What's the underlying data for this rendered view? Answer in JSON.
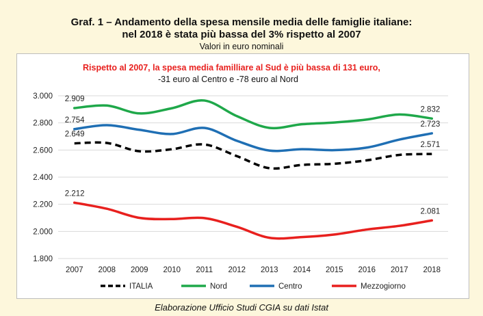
{
  "header": {
    "title_line1": "Graf. 1 – Andamento della spesa mensile media delle famiglie italiane:",
    "title_line2": "nel 2018 è stata più bassa del 3% rispetto al 2007",
    "subtitle": "Valori in euro nominali"
  },
  "source": "Elaborazione Ufficio Studi CGIA su dati Istat",
  "chart_data": {
    "type": "line",
    "annotation_line1": "Rispetto al 2007, la spesa media familliare al Sud è più bassa di 131 euro,",
    "annotation_line2": "-31 euro al Centro e -78 euro al Nord",
    "x": [
      "2007",
      "2008",
      "2009",
      "2010",
      "2011",
      "2012",
      "2013",
      "2014",
      "2015",
      "2016",
      "2017",
      "2018"
    ],
    "ylim": [
      1800,
      3000
    ],
    "yticks": [
      "1.800",
      "2.000",
      "2.200",
      "2.400",
      "2.600",
      "2.800",
      "3.000"
    ],
    "ytick_values": [
      1800,
      2000,
      2200,
      2400,
      2600,
      2800,
      3000
    ],
    "grid": true,
    "legend_position": "bottom",
    "series": [
      {
        "name": "ITALIA",
        "color": "#000000",
        "dashed": true,
        "values": [
          2649,
          2652,
          2591,
          2606,
          2641,
          2555,
          2466,
          2490,
          2499,
          2524,
          2564,
          2571
        ],
        "start_label": "2.649",
        "end_label": "2.571"
      },
      {
        "name": "Nord",
        "color": "#1fa84a",
        "dashed": false,
        "values": [
          2909,
          2928,
          2870,
          2908,
          2965,
          2850,
          2763,
          2790,
          2803,
          2825,
          2862,
          2832
        ],
        "start_label": "2.909",
        "end_label": "2.832"
      },
      {
        "name": "Centro",
        "color": "#1f6fb4",
        "dashed": false,
        "values": [
          2754,
          2783,
          2749,
          2718,
          2763,
          2668,
          2596,
          2606,
          2599,
          2618,
          2677,
          2723
        ],
        "start_label": "2.754",
        "end_label": "2.723"
      },
      {
        "name": "Mezzogiorno",
        "color": "#e8201e",
        "dashed": false,
        "values": [
          2212,
          2167,
          2100,
          2091,
          2098,
          2034,
          1953,
          1958,
          1977,
          2014,
          2041,
          2081
        ],
        "start_label": "2.212",
        "end_label": "2.081"
      }
    ]
  }
}
